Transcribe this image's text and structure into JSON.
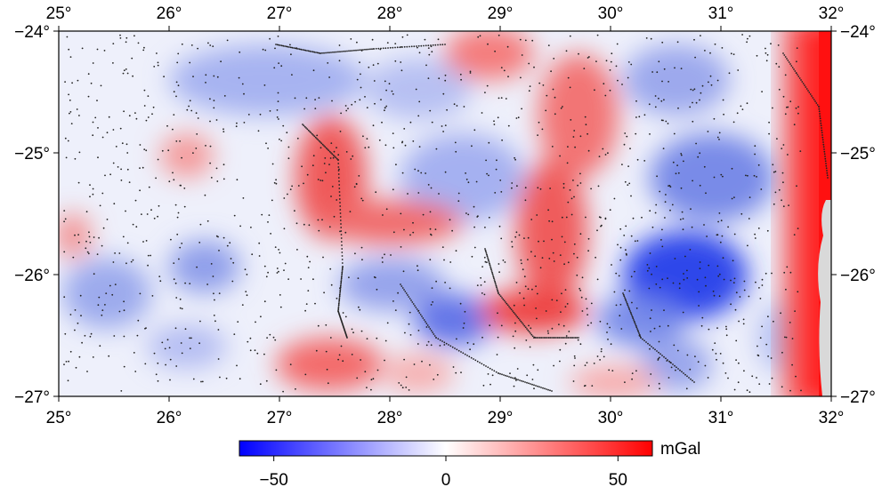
{
  "map": {
    "lon_min": 25,
    "lon_max": 32,
    "lat_min": -27,
    "lat_max": -24,
    "lon_ticks": [
      "25°",
      "26°",
      "27°",
      "28°",
      "29°",
      "30°",
      "31°",
      "32°"
    ],
    "lat_ticks": [
      "−24°",
      "−25°",
      "−26°",
      "−27°"
    ],
    "colors": {
      "negative": "#0000ff",
      "zero": "#ffffff",
      "positive": "#ff0000",
      "no_data": "#d9d9d9",
      "stations": "#222222"
    }
  },
  "colorbar": {
    "unit": "mGal",
    "range": [
      -60,
      60
    ],
    "tick_labels": [
      "−50",
      "0",
      "50"
    ],
    "tick_values": [
      -50,
      0,
      50
    ]
  }
}
